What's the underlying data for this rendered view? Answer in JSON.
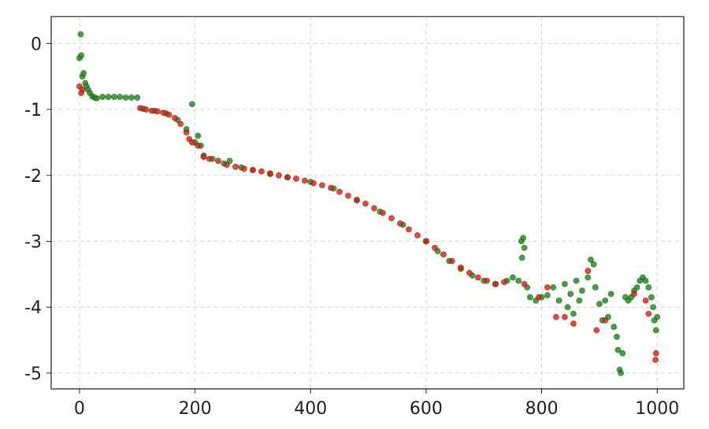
{
  "chart_data": {
    "type": "scatter",
    "xlim": [
      -49,
      1046
    ],
    "ylim": [
      -5.24,
      0.41
    ],
    "xticks": [
      0,
      200,
      400,
      600,
      800,
      1000
    ],
    "yticks": [
      0,
      -1,
      -2,
      -3,
      -4,
      -5
    ],
    "grid": true,
    "series": [
      {
        "color": "#148a14",
        "x": [
          0,
          2,
          3,
          5,
          7,
          10,
          12,
          15,
          18,
          22,
          26,
          30,
          40,
          50,
          60,
          70,
          80,
          90,
          100,
          110,
          130,
          150,
          170,
          185,
          195,
          200,
          205,
          210,
          215,
          230,
          250,
          260,
          280,
          300,
          330,
          360,
          400,
          440,
          480,
          520,
          560,
          600,
          620,
          640,
          660,
          680,
          700,
          720,
          740,
          750,
          760,
          765,
          768,
          770,
          766,
          775,
          780,
          790,
          800,
          810,
          820,
          830,
          840,
          845,
          850,
          855,
          860,
          865,
          870,
          880,
          885,
          890,
          893,
          900,
          905,
          910,
          915,
          920,
          925,
          930,
          932,
          935,
          937,
          940,
          945,
          950,
          955,
          960,
          965,
          970,
          975,
          980,
          985,
          990,
          993,
          995,
          998,
          1000
        ],
        "values": [
          -0.22,
          0.14,
          -0.18,
          -0.5,
          -0.45,
          -0.6,
          -0.65,
          -0.7,
          -0.75,
          -0.8,
          -0.82,
          -0.83,
          -0.81,
          -0.81,
          -0.81,
          -0.81,
          -0.82,
          -0.82,
          -0.82,
          -0.99,
          -1.02,
          -1.06,
          -1.16,
          -1.3,
          -0.92,
          -1.5,
          -1.4,
          -1.55,
          -1.7,
          -1.75,
          -1.82,
          -1.78,
          -1.88,
          -1.92,
          -1.98,
          -2.03,
          -2.1,
          -2.2,
          -2.38,
          -2.55,
          -2.75,
          -3.0,
          -3.15,
          -3.3,
          -3.42,
          -3.52,
          -3.6,
          -3.65,
          -3.6,
          -3.55,
          -3.6,
          -3.0,
          -2.95,
          -3.1,
          -3.25,
          -3.7,
          -3.85,
          -3.9,
          -3.85,
          -3.82,
          -3.7,
          -3.9,
          -3.65,
          -4.0,
          -3.8,
          -4.1,
          -3.6,
          -3.9,
          -3.75,
          -3.55,
          -3.28,
          -3.35,
          -3.7,
          -3.95,
          -4.2,
          -3.9,
          -4.15,
          -3.8,
          -4.3,
          -4.45,
          -4.65,
          -4.95,
          -5.0,
          -4.7,
          -3.85,
          -3.9,
          -3.85,
          -3.75,
          -3.7,
          -3.6,
          -3.55,
          -3.6,
          -3.7,
          -3.85,
          -4.0,
          -4.2,
          -4.35,
          -4.15
        ]
      },
      {
        "color": "#e8140c",
        "x": [
          0,
          3,
          5,
          105,
          115,
          125,
          135,
          145,
          155,
          165,
          175,
          185,
          190,
          195,
          205,
          215,
          225,
          240,
          255,
          270,
          285,
          300,
          315,
          330,
          345,
          360,
          375,
          390,
          405,
          420,
          435,
          450,
          465,
          480,
          495,
          510,
          525,
          540,
          555,
          570,
          585,
          600,
          615,
          630,
          645,
          660,
          675,
          690,
          705,
          720,
          735,
          770,
          795,
          810,
          825,
          840,
          855,
          880,
          895,
          910,
          960,
          980,
          985,
          997,
          998
        ],
        "values": [
          -0.65,
          -0.75,
          -0.7,
          -0.98,
          -1.0,
          -1.02,
          -1.03,
          -1.05,
          -1.08,
          -1.13,
          -1.22,
          -1.35,
          -1.45,
          -1.5,
          -1.55,
          -1.72,
          -1.75,
          -1.78,
          -1.84,
          -1.87,
          -1.9,
          -1.92,
          -1.94,
          -1.97,
          -2.0,
          -2.03,
          -2.05,
          -2.08,
          -2.12,
          -2.15,
          -2.19,
          -2.25,
          -2.31,
          -2.37,
          -2.43,
          -2.5,
          -2.57,
          -2.65,
          -2.73,
          -2.82,
          -2.91,
          -3.0,
          -3.1,
          -3.2,
          -3.3,
          -3.4,
          -3.48,
          -3.55,
          -3.6,
          -3.65,
          -3.62,
          -3.65,
          -3.85,
          -3.7,
          -4.15,
          -4.15,
          -4.25,
          -3.45,
          -4.35,
          -4.2,
          -3.8,
          -3.9,
          -4.1,
          -4.8,
          -4.7
        ]
      }
    ]
  }
}
